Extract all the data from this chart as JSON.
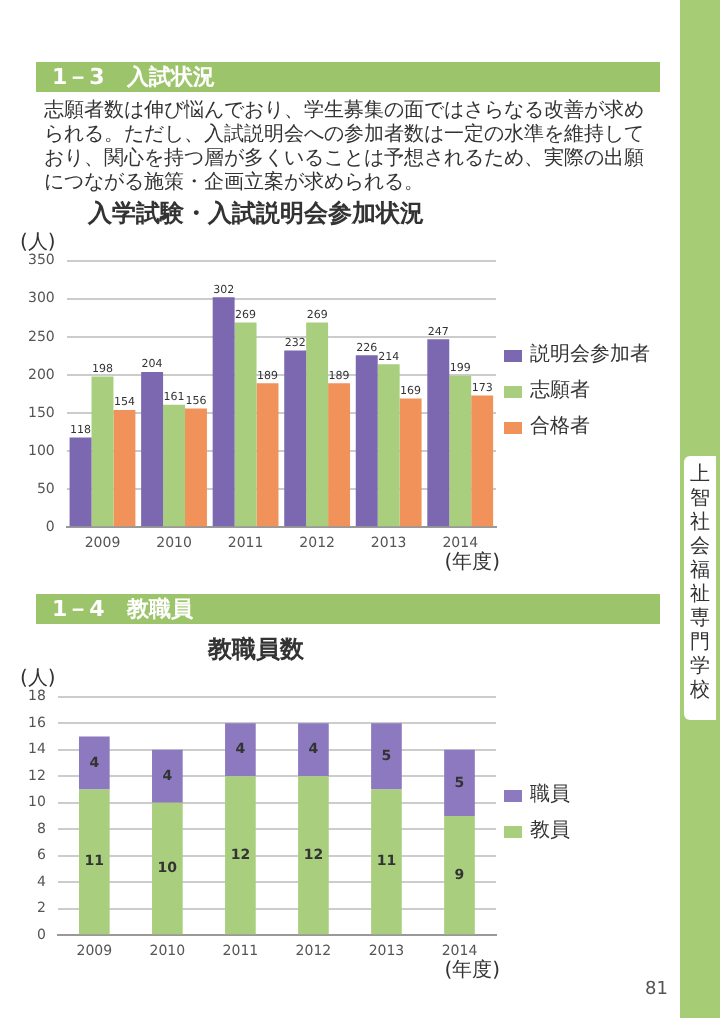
{
  "chart_data": [
    {
      "type": "bar",
      "title": "入学試験・入試説明会参加状況",
      "ylabel": "(人)",
      "xlabel": "(年度)",
      "categories": [
        "2009",
        "2010",
        "2011",
        "2012",
        "2013",
        "2014"
      ],
      "series": [
        {
          "name": "説明会参加者",
          "color": "#7b68b0",
          "values": [
            118,
            204,
            302,
            232,
            226,
            247
          ]
        },
        {
          "name": "志願者",
          "color": "#a9cf7e",
          "values": [
            198,
            161,
            269,
            269,
            214,
            199
          ]
        },
        {
          "name": "合格者",
          "color": "#f0925a",
          "values": [
            154,
            156,
            189,
            189,
            169,
            173
          ]
        }
      ],
      "ylim": [
        0,
        350
      ],
      "yticks": [
        0,
        50,
        100,
        150,
        200,
        250,
        300,
        350
      ],
      "grid": "y",
      "legend": "right",
      "data_labels": true,
      "annotations": [
        "1－3　入試状況",
        "志願者数は伸び悩んでおり、学生募集の面ではさらなる改善が求められる。ただし、入試説明会への参加者数は一定の水準を維持しており、関心を持つ層が多くいることは予想されるため、実際の出願につながる施策・企画立案が求められる。"
      ]
    },
    {
      "type": "bar",
      "title": "教職員数",
      "ylabel": "(人)",
      "xlabel": "(年度)",
      "stacked": true,
      "categories": [
        "2009",
        "2010",
        "2011",
        "2012",
        "2013",
        "2014"
      ],
      "series": [
        {
          "name": "教員",
          "color": "#a9cf7e",
          "values": [
            11,
            10,
            12,
            12,
            11,
            9
          ]
        },
        {
          "name": "職員",
          "color": "#8d79bf",
          "values": [
            4,
            4,
            4,
            4,
            5,
            5
          ]
        }
      ],
      "ylim": [
        0,
        18
      ],
      "yticks": [
        0,
        2,
        4,
        6,
        8,
        10,
        12,
        14,
        16,
        18
      ],
      "grid": "y",
      "legend": "right",
      "data_labels": true,
      "annotations": [
        "1－4　教職員",
        "上智社会福祉専門学校",
        "81"
      ]
    }
  ]
}
